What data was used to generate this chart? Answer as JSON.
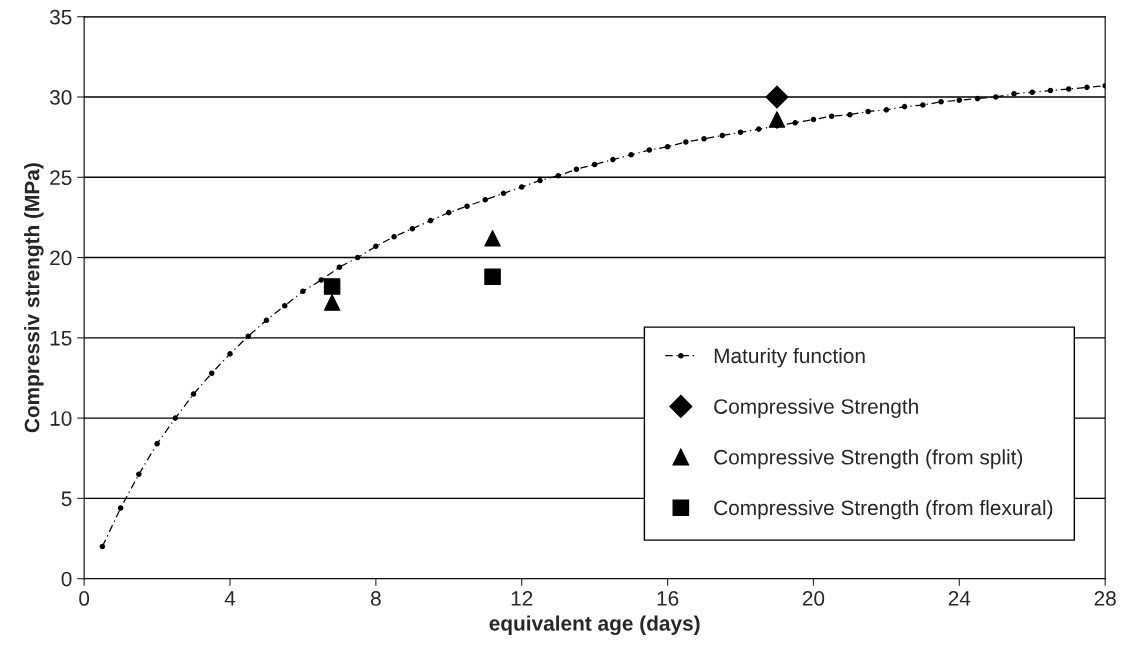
{
  "chart_data": {
    "type": "scatter",
    "xlabel": "equivalent age (days)",
    "ylabel": "Compressiv strength (MPa)",
    "xlim": [
      0,
      28
    ],
    "xticks": [
      0,
      4,
      8,
      12,
      16,
      20,
      24,
      28
    ],
    "ylim": [
      0,
      35
    ],
    "yticks": [
      0,
      5,
      10,
      15,
      20,
      25,
      30,
      35
    ],
    "grid": "y",
    "legend": "bottom right",
    "series": [
      {
        "name": "Maturity function",
        "type": "line",
        "color": "#000000",
        "marker": "circle",
        "line_style": "dashed",
        "x": [
          0.5,
          1,
          1.5,
          2,
          2.5,
          3,
          3.5,
          4,
          4.5,
          5,
          5.5,
          6,
          6.5,
          7,
          7.5,
          8,
          8.5,
          9,
          9.5,
          10,
          10.5,
          11,
          11.5,
          12,
          12.5,
          13,
          13.5,
          14,
          14.5,
          15,
          15.5,
          16,
          16.5,
          17,
          17.5,
          18,
          18.5,
          19,
          19.5,
          20,
          20.5,
          21,
          21.5,
          22,
          22.5,
          23,
          23.5,
          24,
          24.5,
          25,
          25.5,
          26,
          26.5,
          27,
          27.5,
          28
        ],
        "values": [
          2.0,
          4.4,
          6.5,
          8.4,
          10.0,
          11.5,
          12.8,
          14.0,
          15.1,
          16.1,
          17.0,
          17.9,
          18.6,
          19.4,
          20.0,
          20.7,
          21.3,
          21.8,
          22.3,
          22.8,
          23.2,
          23.6,
          24.0,
          24.4,
          24.8,
          25.1,
          25.5,
          25.8,
          26.1,
          26.4,
          26.7,
          26.9,
          27.2,
          27.4,
          27.6,
          27.8,
          28.0,
          28.2,
          28.4,
          28.6,
          28.8,
          28.9,
          29.1,
          29.2,
          29.4,
          29.5,
          29.7,
          29.8,
          29.9,
          30.0,
          30.2,
          30.3,
          30.4,
          30.5,
          30.6,
          30.7
        ]
      },
      {
        "name": "Compressive Strength",
        "color": "#000000",
        "marker": "diamond",
        "x": [
          19.0
        ],
        "values": [
          30.0
        ]
      },
      {
        "name": "Compressive Strength (from split)",
        "color": "#000000",
        "marker": "triangle",
        "x": [
          6.8,
          11.2,
          19.0
        ],
        "values": [
          17.2,
          21.2,
          28.6
        ]
      },
      {
        "name": "Compressive Strength (from flexural)",
        "color": "#000000",
        "marker": "square",
        "x": [
          6.8,
          11.2
        ],
        "values": [
          18.2,
          18.8
        ]
      }
    ]
  }
}
